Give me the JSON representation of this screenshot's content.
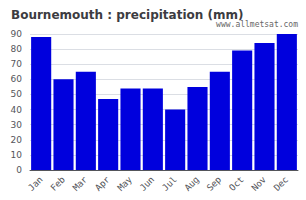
{
  "chart_data": {
    "type": "bar",
    "title": "Bournemouth : precipitation (mm)",
    "categories": [
      "Jan",
      "Feb",
      "Mar",
      "Apr",
      "May",
      "Jun",
      "Jul",
      "Aug",
      "Sep",
      "Oct",
      "Nov",
      "Dec"
    ],
    "values": [
      88,
      60,
      65,
      47,
      54,
      54,
      40,
      55,
      65,
      79,
      84,
      90
    ],
    "color": "#0000DD",
    "ylim": [
      0,
      90
    ],
    "yticks": [
      0,
      10,
      20,
      30,
      40,
      50,
      60,
      70,
      80,
      90
    ],
    "grid": true,
    "annotations": [
      "www.allmetsat.com"
    ]
  }
}
